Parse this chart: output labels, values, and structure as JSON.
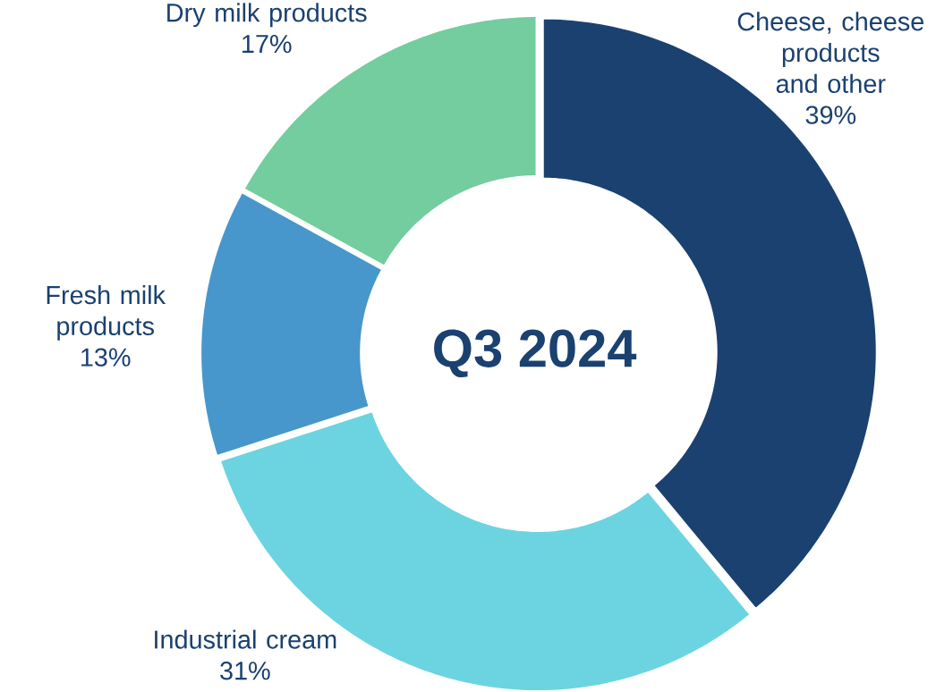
{
  "chart_data": {
    "type": "donut",
    "title": "Q3 2024",
    "categories": [
      "Cheese, cheese products and other",
      "Industrial cream",
      "Fresh milk products",
      "Dry milk products"
    ],
    "values": [
      39,
      31,
      13,
      17
    ],
    "value_labels": [
      "39%",
      "31%",
      "13%",
      "17%"
    ],
    "colors": [
      "#1a4170",
      "#6cd4e0",
      "#4797cc",
      "#73cd9e"
    ]
  }
}
